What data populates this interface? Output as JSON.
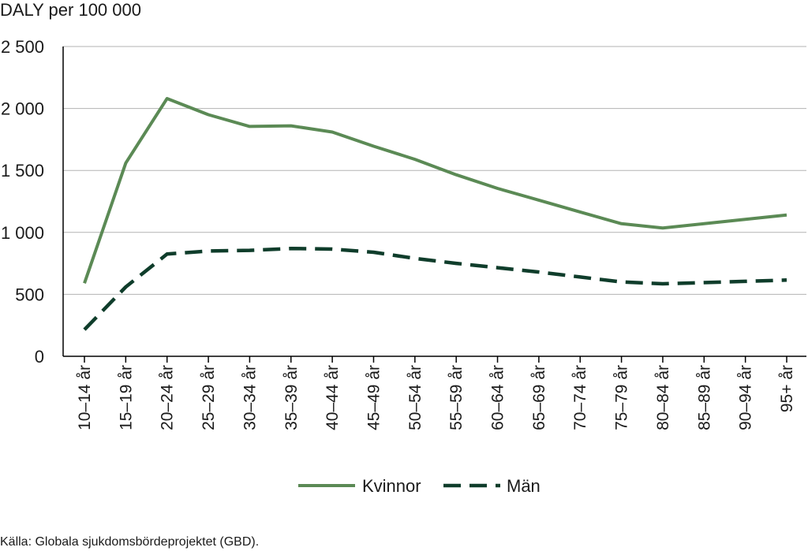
{
  "chart_data": {
    "type": "line",
    "ylabel": "DALY per 100 000",
    "xlabel": "",
    "ylim": [
      0,
      2500
    ],
    "yticks": [
      0,
      500,
      1000,
      1500,
      2000,
      2500
    ],
    "ytick_labels": [
      "0",
      "500",
      "1 000",
      "1 500",
      "2 000",
      "2 500"
    ],
    "grid": true,
    "legend_position": "bottom-center",
    "categories": [
      "10–14 år",
      "15–19 år",
      "20–24 år",
      "25–29 år",
      "30–34 år",
      "35–39 år",
      "40–44 år",
      "45–49 år",
      "50–54 år",
      "55–59 år",
      "60–64 år",
      "65–69 år",
      "70–74 år",
      "75–79 år",
      "80–84 år",
      "85–89 år",
      "90–94 år",
      "95+ år"
    ],
    "series": [
      {
        "name": "Kvinnor",
        "color": "#5b8a55",
        "dash": "solid",
        "values": [
          590,
          1560,
          2080,
          1950,
          1855,
          1860,
          1810,
          1695,
          1590,
          1465,
          1355,
          1260,
          1165,
          1070,
          1035,
          1070,
          1105,
          1140
        ]
      },
      {
        "name": "Män",
        "color": "#0f3d2b",
        "dash": "dashed",
        "values": [
          215,
          560,
          825,
          850,
          855,
          870,
          865,
          840,
          790,
          750,
          715,
          680,
          640,
          600,
          585,
          595,
          605,
          615
        ]
      }
    ],
    "source": "Källa: Globala sjukdomsbördeprojektet (GBD)."
  }
}
